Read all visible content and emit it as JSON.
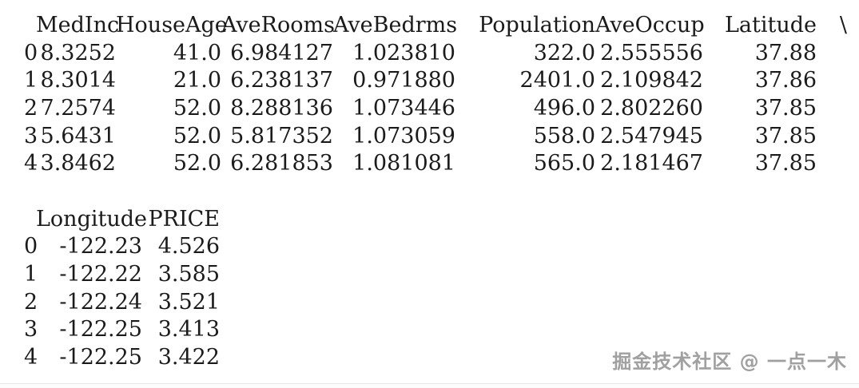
{
  "table1": {
    "headers": [
      "MedInc",
      "HouseAge",
      "AveRooms",
      "AveBedrms",
      "Population",
      "AveOccup",
      "Latitude"
    ],
    "continuation": "\\",
    "rows": [
      {
        "index": "0",
        "cells": [
          "8.3252",
          "41.0",
          "6.984127",
          "1.023810",
          "322.0",
          "2.555556",
          "37.88"
        ]
      },
      {
        "index": "1",
        "cells": [
          "8.3014",
          "21.0",
          "6.238137",
          "0.971880",
          "2401.0",
          "2.109842",
          "37.86"
        ]
      },
      {
        "index": "2",
        "cells": [
          "7.2574",
          "52.0",
          "8.288136",
          "1.073446",
          "496.0",
          "2.802260",
          "37.85"
        ]
      },
      {
        "index": "3",
        "cells": [
          "5.6431",
          "52.0",
          "5.817352",
          "1.073059",
          "558.0",
          "2.547945",
          "37.85"
        ]
      },
      {
        "index": "4",
        "cells": [
          "3.8462",
          "52.0",
          "6.281853",
          "1.081081",
          "565.0",
          "2.181467",
          "37.85"
        ]
      }
    ]
  },
  "table2": {
    "headers": [
      "Longitude",
      "PRICE"
    ],
    "rows": [
      {
        "index": "0",
        "cells": [
          "-122.23",
          "4.526"
        ]
      },
      {
        "index": "1",
        "cells": [
          "-122.22",
          "3.585"
        ]
      },
      {
        "index": "2",
        "cells": [
          "-122.24",
          "3.521"
        ]
      },
      {
        "index": "3",
        "cells": [
          "-122.25",
          "3.413"
        ]
      },
      {
        "index": "4",
        "cells": [
          "-122.25",
          "3.422"
        ]
      }
    ]
  },
  "watermark": {
    "text": "掘金技术社区 @ 一点一木"
  },
  "colors": {
    "text": "#1b1b1b",
    "background": "#ffffff",
    "watermark": "#a0a0a0",
    "divider": "#e7e7e7"
  }
}
